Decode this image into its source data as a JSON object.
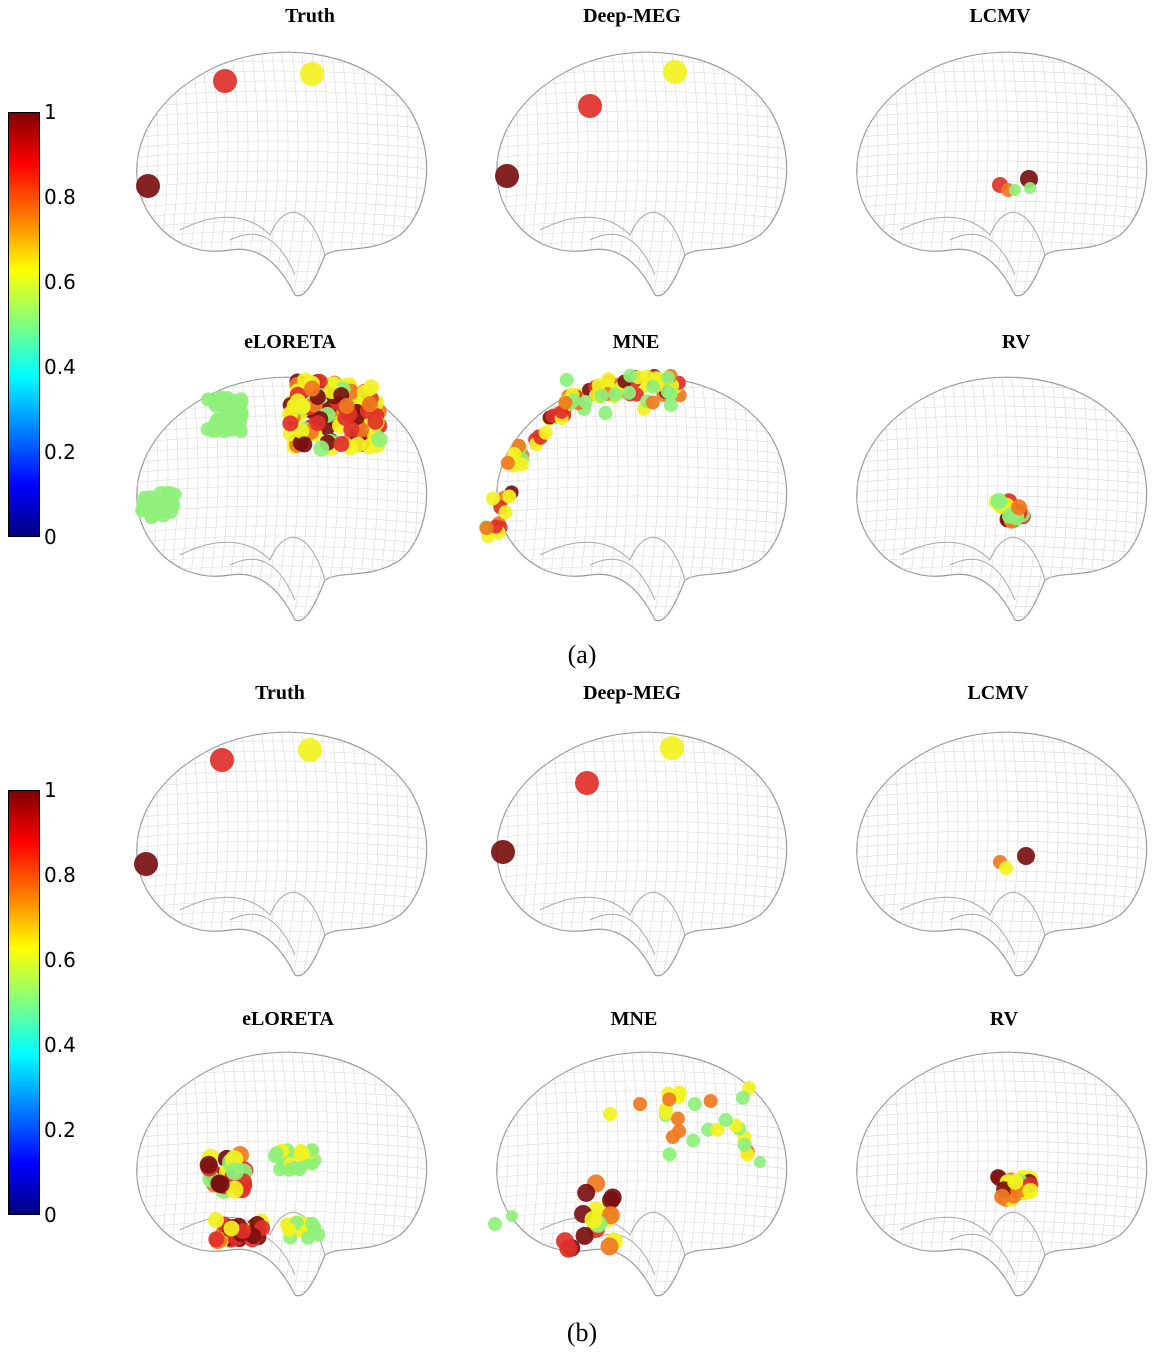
{
  "colorbar": {
    "ticks": [
      "1",
      "0.8",
      "0.6",
      "0.4",
      "0.2",
      "0"
    ],
    "colormap": "jet",
    "range": [
      0,
      1
    ]
  },
  "figure_a": {
    "caption": "(a)",
    "panels": [
      {
        "title": "Truth"
      },
      {
        "title": "Deep-MEG"
      },
      {
        "title": "LCMV"
      },
      {
        "title": "eLORETA"
      },
      {
        "title": "MNE"
      },
      {
        "title": "RV"
      }
    ]
  },
  "figure_b": {
    "caption": "(b)",
    "panels": [
      {
        "title": "Truth"
      },
      {
        "title": "Deep-MEG"
      },
      {
        "title": "LCMV"
      },
      {
        "title": "eLORETA"
      },
      {
        "title": "MNE"
      },
      {
        "title": "RV"
      }
    ]
  },
  "colors": {
    "dark_red": "#7a1010",
    "red": "#e0302a",
    "orange": "#f07820",
    "yellow": "#f2f220",
    "green": "#8ef07a"
  }
}
